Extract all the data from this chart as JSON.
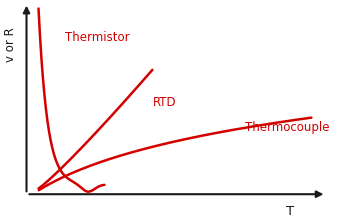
{
  "title": "",
  "ylabel": "v or R",
  "xlabel": "T",
  "line_color": "#d40000",
  "background_color": "#ffffff",
  "thermistor_label": "Thermistor",
  "rtd_label": "RTD",
  "thermocouple_label": "Thermocouple",
  "xlim": [
    0,
    1.0
  ],
  "ylim": [
    0,
    1.0
  ],
  "axis_color": "#1a1a1a",
  "label_color": "#555555",
  "label_fontsize": 8.5,
  "ylabel_fontsize": 8.5,
  "xlabel_fontsize": 9.5
}
